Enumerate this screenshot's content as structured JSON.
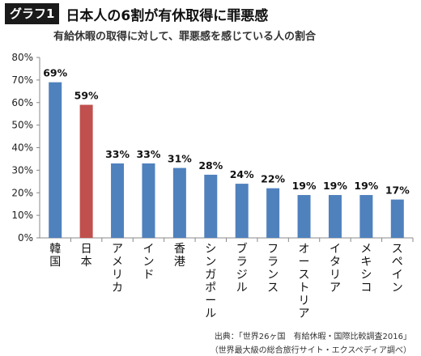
{
  "header": {
    "badge": "グラフ1",
    "title": "日本人の6割が有休取得に罪悪感",
    "subtitle": "有給休暇の取得に対して、罪悪感を感じている人の割合"
  },
  "chart_data": {
    "type": "bar",
    "categories": [
      "韓国",
      "日本",
      "アメリカ",
      "インド",
      "香港",
      "シンガポール",
      "ブラジル",
      "フランス",
      "オーストリア",
      "イタリア",
      "メキシコ",
      "スペイン"
    ],
    "values": [
      69,
      59,
      33,
      33,
      31,
      28,
      24,
      22,
      19,
      19,
      19,
      17
    ],
    "value_labels": [
      "69%",
      "59%",
      "33%",
      "33%",
      "31%",
      "28%",
      "24%",
      "22%",
      "19%",
      "19%",
      "19%",
      "17%"
    ],
    "bar_colors": [
      "#4f81bd",
      "#c0504d",
      "#4f81bd",
      "#4f81bd",
      "#4f81bd",
      "#4f81bd",
      "#4f81bd",
      "#4f81bd",
      "#4f81bd",
      "#4f81bd",
      "#4f81bd",
      "#4f81bd"
    ],
    "ylim": [
      0,
      80
    ],
    "yticks": [
      "0%",
      "10%",
      "20%",
      "30%",
      "40%",
      "50%",
      "60%",
      "70%",
      "80%"
    ],
    "grid": false,
    "title": "日本人の6割が有休取得に罪悪感",
    "xlabel": "",
    "ylabel": ""
  },
  "source": {
    "line1": "出典：「世界26ヶ国　有給休暇・国際比較調査2016」",
    "line2": "（世界最大級の総合旅行サイト・エクスペディア調べ）"
  }
}
